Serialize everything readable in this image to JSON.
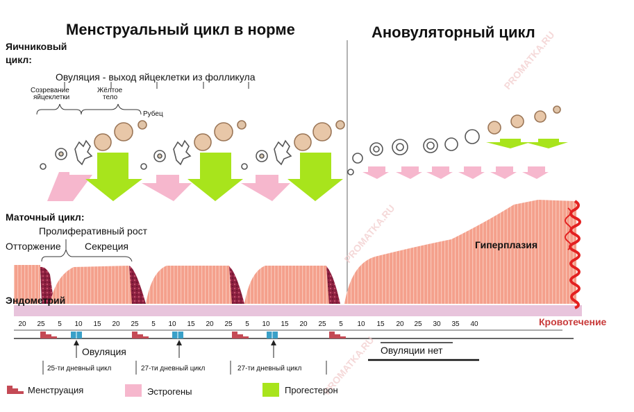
{
  "titles": {
    "normal": "Менструальный цикл в норме",
    "anovulatory": "Ановуляторный цикл"
  },
  "ovarian": {
    "label_line1": "Яичниковый",
    "label_line2": "цикл:",
    "ovulation_desc": "Овуляция - выход яйцеклетки из фолликула",
    "maturation_line1": "Созревание",
    "maturation_line2": "яйцеклетки",
    "corpus_line1": "Жёлтое",
    "corpus_line2": "тело",
    "scar": "Рубец"
  },
  "uterine": {
    "label": "Маточный цикл:",
    "proliferative": "Пролиферативный рост",
    "rejection": "Отторжение",
    "secretion": "Секреция",
    "hyperplasia": "Гиперплазия",
    "endometrium": "Эндометрий",
    "bleeding": "Кровотечение"
  },
  "timeline": {
    "ticks": [
      "20",
      "25",
      "5",
      "10",
      "15",
      "20",
      "25",
      "5",
      "10",
      "15",
      "20",
      "25",
      "5",
      "10",
      "15",
      "20",
      "25",
      "5",
      "10",
      "15",
      "20",
      "25",
      "30",
      "35",
      "40"
    ],
    "ovulation": "Овуляция",
    "no_ovulation": "Овуляции нет",
    "cycles": [
      "25-ти дневный цикл",
      "27-ти дневный цикл",
      "27-ти дневный цикл"
    ]
  },
  "legend": {
    "menstruation": "Менструация",
    "estrogens": "Эстрогены",
    "progesterone": "Прогестерон"
  },
  "watermark": "PROMATKA.RU",
  "colors": {
    "estrogen": "#f6b7cd",
    "progesterone": "#a8e41c",
    "endometrium": "#f4a08c",
    "endometrium_dark": "#f07f6c",
    "menstrual": "#8c2040",
    "bleeding": "#e32020",
    "basal_layer": "#e8c4dc",
    "bleeding_text": "#c83a3a"
  }
}
